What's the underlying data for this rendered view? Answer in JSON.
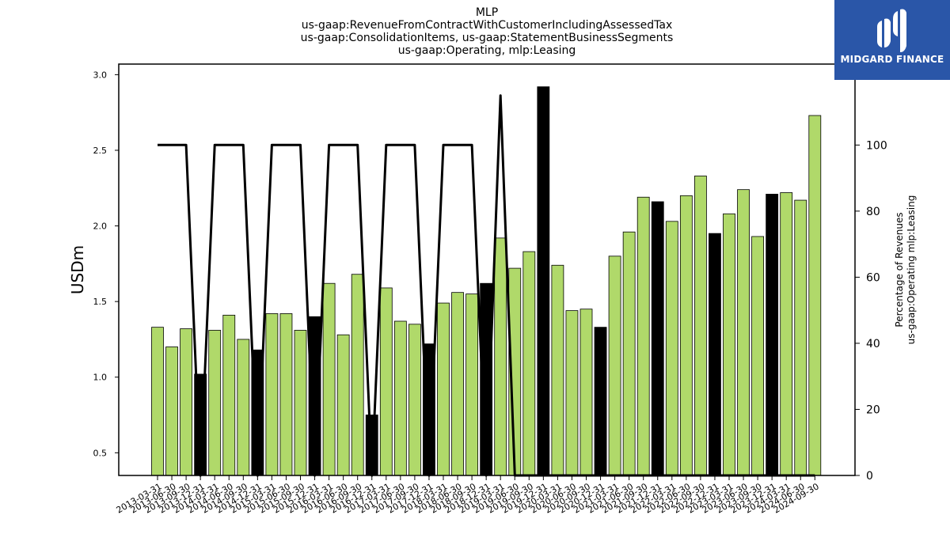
{
  "logo": {
    "text": "MIDGARD FINANCE",
    "background": "#2a56a8"
  },
  "chart_data": {
    "type": "bar",
    "title_lines": [
      "MLP",
      "us-gaap:RevenueFromContractWithCustomerIncludingAssessedTax",
      "us-gaap:ConsolidationItems, us-gaap:StatementBusinessSegments",
      "us-gaap:Operating, mlp:Leasing"
    ],
    "ylabel": "USDm",
    "y2label_lines": [
      "Percentage of Revenues",
      "us-gaap:Operating mlp:Leasing"
    ],
    "ylim": [
      0.35,
      3.07
    ],
    "y2lim": [
      0,
      124.5
    ],
    "yticks": [
      "0.5",
      "1.0",
      "1.5",
      "2.0",
      "2.5",
      "3.0"
    ],
    "y2ticks": [
      "0",
      "20",
      "40",
      "60",
      "80",
      "100"
    ],
    "colors": {
      "bar": "#b0d96a",
      "bar_highlight": "#000000",
      "line": "#000000"
    },
    "categories": [
      "2013-03-31",
      "2013-06-30",
      "2013-09-30",
      "2013-12-31",
      "2014-03-31",
      "2014-06-30",
      "2014-09-30",
      "2014-12-31",
      "2015-03-31",
      "2015-06-30",
      "2015-09-30",
      "2015-12-31",
      "2016-03-31",
      "2016-06-30",
      "2016-09-30",
      "2016-12-31",
      "2017-03-31",
      "2017-06-30",
      "2017-09-30",
      "2017-12-31",
      "2018-03-31",
      "2018-06-30",
      "2018-09-30",
      "2018-12-31",
      "2019-03-31",
      "2019-06-30",
      "2019-09-30",
      "2019-12-31",
      "2020-03-31",
      "2020-06-30",
      "2020-09-30",
      "2020-12-31",
      "2021-03-31",
      "2021-06-30",
      "2021-09-30",
      "2021-12-31",
      "2022-03-31",
      "2022-06-30",
      "2022-09-30",
      "2022-12-31",
      "2023-03-31",
      "2023-06-30",
      "2023-09-30",
      "2023-12-31",
      "2024-03-31",
      "2024-06-30",
      "2024-09-30"
    ],
    "series": [
      {
        "type": "bar",
        "values": [
          1.33,
          1.2,
          1.32,
          1.02,
          1.31,
          1.41,
          1.25,
          1.18,
          1.42,
          1.42,
          1.31,
          1.4,
          1.62,
          1.28,
          1.68,
          0.75,
          1.59,
          1.37,
          1.35,
          1.22,
          1.49,
          1.56,
          1.55,
          1.62,
          1.92,
          1.72,
          1.83,
          2.92,
          1.74,
          1.44,
          1.45,
          1.33,
          1.8,
          1.96,
          2.19,
          2.16,
          2.03,
          2.2,
          2.33,
          1.95,
          2.08,
          2.24,
          1.93,
          2.21,
          2.22,
          2.17,
          2.73
        ],
        "highlight": [
          false,
          false,
          false,
          true,
          false,
          false,
          false,
          true,
          false,
          false,
          false,
          true,
          false,
          false,
          false,
          true,
          false,
          false,
          false,
          true,
          false,
          false,
          false,
          true,
          false,
          false,
          false,
          true,
          false,
          false,
          false,
          true,
          false,
          false,
          false,
          true,
          false,
          false,
          false,
          true,
          false,
          false,
          false,
          true,
          false,
          false,
          false
        ]
      },
      {
        "type": "line",
        "axis": "y2",
        "values": [
          100,
          100,
          100,
          0,
          100,
          100,
          100,
          0,
          100,
          100,
          100,
          0,
          100,
          100,
          100,
          0,
          100,
          100,
          100,
          0,
          100,
          100,
          100,
          0,
          115,
          0,
          0,
          0,
          0,
          0,
          0,
          0,
          0,
          0,
          0,
          0,
          0,
          0,
          0,
          0,
          0,
          0,
          0,
          0,
          0,
          0,
          0
        ]
      }
    ],
    "grid": false
  }
}
